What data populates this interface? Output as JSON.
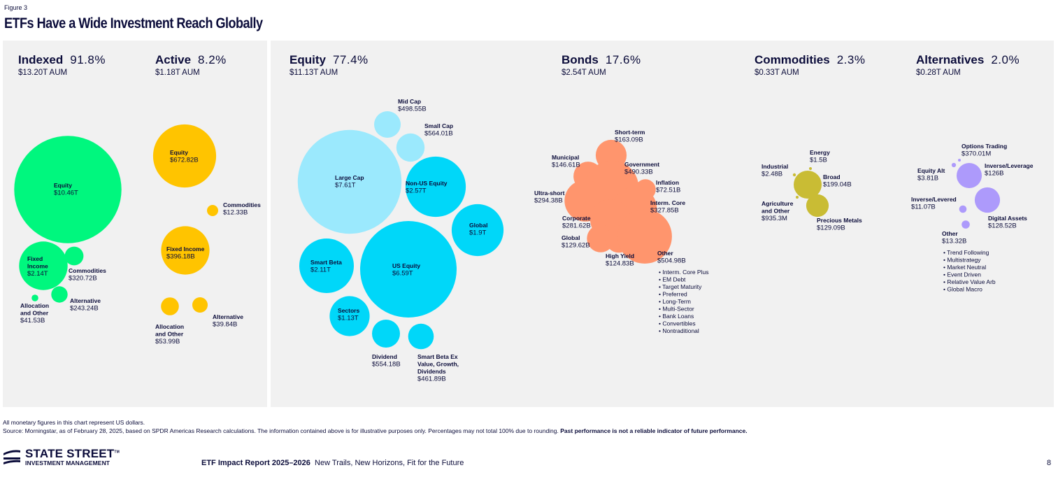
{
  "figure_label": "Figure 3",
  "title": "ETFs Have a Wide Investment Reach Globally",
  "colors": {
    "indexed": "#00f77e",
    "active": "#ffc400",
    "equity_large": "#9be9fd",
    "equity": "#00d7f9",
    "bonds": "#ff956d",
    "commodities": "#c9bc34",
    "alternatives": "#ad9afb",
    "text": "#0b0c3a",
    "panel_bg": "#f1f1f1"
  },
  "chart_data": {
    "type": "bubble",
    "title": "ETFs Have a Wide Investment Reach Globally",
    "units": "USD AUM",
    "groups": [
      {
        "id": "indexed",
        "name": "Indexed",
        "pct": "91.8%",
        "aum": "$13.20T AUM",
        "color_key": "indexed",
        "items": [
          {
            "name": "Equity",
            "value": 10460,
            "label_value": "$10.46T"
          },
          {
            "name": "Fixed Income",
            "value": 2140,
            "label_value": "$2.14T"
          },
          {
            "name": "Commodities",
            "value": 320.72,
            "label_value": "$320.72B"
          },
          {
            "name": "Alternative",
            "value": 243.24,
            "label_value": "$243.24B"
          },
          {
            "name": "Allocation and Other",
            "value": 41.53,
            "label_value": "$41.53B"
          }
        ]
      },
      {
        "id": "active",
        "name": "Active",
        "pct": "8.2%",
        "aum": "$1.18T AUM",
        "color_key": "active",
        "items": [
          {
            "name": "Equity",
            "value": 672.82,
            "label_value": "$672.82B"
          },
          {
            "name": "Commodities",
            "value": 12.33,
            "label_value": "$12.33B"
          },
          {
            "name": "Fixed Income",
            "value": 396.18,
            "label_value": "$396.18B"
          },
          {
            "name": "Allocation and Other",
            "value": 53.99,
            "label_value": "$53.99B"
          },
          {
            "name": "Alternative",
            "value": 39.84,
            "label_value": "$39.84B"
          }
        ]
      },
      {
        "id": "equity",
        "name": "Equity",
        "pct": "77.4%",
        "aum": "$11.13T AUM",
        "color_key": "equity",
        "items": [
          {
            "name": "Mid Cap",
            "value": 498.55,
            "label_value": "$498.55B"
          },
          {
            "name": "Small Cap",
            "value": 564.01,
            "label_value": "$564.01B"
          },
          {
            "name": "Large Cap",
            "value": 7610,
            "label_value": "$7.61T"
          },
          {
            "name": "Non-US Equity",
            "value": 2570,
            "label_value": "$2.57T"
          },
          {
            "name": "Global",
            "value": 1900,
            "label_value": "$1.9T"
          },
          {
            "name": "Smart Beta",
            "value": 2110,
            "label_value": "$2.11T"
          },
          {
            "name": "US Equity",
            "value": 6590,
            "label_value": "$6.59T"
          },
          {
            "name": "Sectors",
            "value": 1130,
            "label_value": "$1.13T"
          },
          {
            "name": "Dividend",
            "value": 554.18,
            "label_value": "$554.18B"
          },
          {
            "name": "Smart Beta Ex Value, Growth, Dividends",
            "value": 461.89,
            "label_value": "$461.89B"
          }
        ]
      },
      {
        "id": "bonds",
        "name": "Bonds",
        "pct": "17.6%",
        "aum": "$2.54T AUM",
        "color_key": "bonds",
        "items": [
          {
            "name": "Short-term",
            "value": 163.09,
            "label_value": "$163.09B"
          },
          {
            "name": "Municipal",
            "value": 146.61,
            "label_value": "$146.61B"
          },
          {
            "name": "Government",
            "value": 490.33,
            "label_value": "$490.33B"
          },
          {
            "name": "Inflation",
            "value": 72.51,
            "label_value": "$72.51B"
          },
          {
            "name": "Ultra-short",
            "value": 294.38,
            "label_value": "$294.38B"
          },
          {
            "name": "Interm. Core",
            "value": 327.85,
            "label_value": "$327.85B"
          },
          {
            "name": "Corporate",
            "value": 281.62,
            "label_value": "$281.62B"
          },
          {
            "name": "Global",
            "value": 129.62,
            "label_value": "$129.62B"
          },
          {
            "name": "High Yield",
            "value": 124.83,
            "label_value": "$124.83B"
          },
          {
            "name": "Other",
            "value": 504.98,
            "label_value": "$504.98B"
          }
        ],
        "other_breakdown": [
          "Interm. Core Plus",
          "EM Debt",
          "Target Maturity",
          "Preferred",
          "Long-Term",
          "Multi-Sector",
          "Bank Loans",
          "Convertibles",
          "Nontraditional"
        ]
      },
      {
        "id": "commodities",
        "name": "Commodities",
        "pct": "2.3%",
        "aum": "$0.33T AUM",
        "color_key": "commodities",
        "items": [
          {
            "name": "Energy",
            "value": 1.5,
            "label_value": "$1.5B"
          },
          {
            "name": "Industrial",
            "value": 2.48,
            "label_value": "$2.48B"
          },
          {
            "name": "Broad",
            "value": 199.04,
            "label_value": "$199.04B"
          },
          {
            "name": "Agriculture and Other",
            "value": 0.9353,
            "label_value": "$935.3M"
          },
          {
            "name": "Precious Metals",
            "value": 129.09,
            "label_value": "$129.09B"
          }
        ]
      },
      {
        "id": "alternatives",
        "name": "Alternatives",
        "pct": "2.0%",
        "aum": "$0.28T AUM",
        "color_key": "alternatives",
        "items": [
          {
            "name": "Options Trading",
            "value": 0.37001,
            "label_value": "$370.01M"
          },
          {
            "name": "Equity Alt",
            "value": 3.81,
            "label_value": "$3.81B"
          },
          {
            "name": "Inverse/Leverage",
            "value": 126,
            "label_value": "$126B"
          },
          {
            "name": "Inverse/Levered",
            "value": 11.07,
            "label_value": "$11.07B"
          },
          {
            "name": "Digital Assets",
            "value": 128.52,
            "label_value": "$128.52B"
          },
          {
            "name": "Other",
            "value": 13.32,
            "label_value": "$13.32B"
          }
        ],
        "other_breakdown": [
          "Trend Following",
          "Multistrategy",
          "Market Neutral",
          "Event Driven",
          "Relative Value Arb",
          "Global Macro"
        ]
      }
    ]
  },
  "footnotes": {
    "line1": "All monetary figures in this chart represent US dollars.",
    "line2": "Source: Morningstar, as of February 28, 2025, based on SPDR Americas Research calculations. The information contained above is for illustrative purposes only. Percentages may not total 100% due to rounding.",
    "line2_bold": "Past performance is not a reliable indicator of future performance."
  },
  "footer": {
    "logo_main": "STATE STREET",
    "logo_tm": "TM",
    "logo_sub": "INVESTMENT MANAGEMENT",
    "report_bold": "ETF Impact Report 2025–2026",
    "report_subtitle": "New Trails, New Horizons, Fit for the Future",
    "page_number": "8"
  }
}
